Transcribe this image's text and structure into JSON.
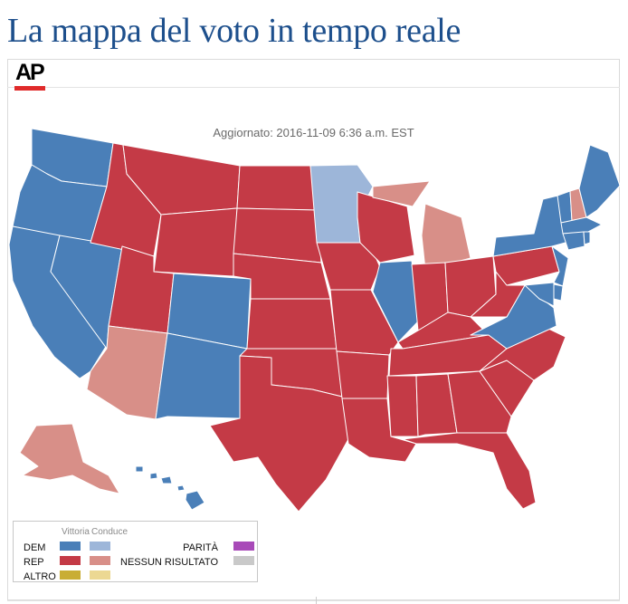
{
  "title": "La mappa del voto in tempo reale",
  "logo_text": "AP",
  "updated_text": "Aggiornato: 2016-11-09 6:36 a.m. EST",
  "colors": {
    "dem_won": "#4a7fb8",
    "dem_lead": "#9db6d9",
    "rep_won": "#c43a46",
    "rep_lead": "#d88f88",
    "other_won": "#c9ad34",
    "other_lead": "#ecd893",
    "tie": "#a84ab8",
    "no_result": "#c9c9c9",
    "title": "#1d4f8c",
    "ap_bar": "#e02a2a"
  },
  "legend": {
    "header_won": "Vittoria",
    "header_lead": "Conduce",
    "rows": [
      "DEM",
      "REP",
      "ALTRO"
    ],
    "tie_label": "PARITÀ",
    "no_result_label": "NESSUN RISULTATO"
  },
  "state_status": {
    "WA": "dem_won",
    "OR": "dem_won",
    "CA": "dem_won",
    "NV": "dem_won",
    "CO": "dem_won",
    "NM": "dem_won",
    "IL": "dem_won",
    "VA": "dem_won",
    "NY": "dem_won",
    "VT": "dem_won",
    "ME": "dem_won",
    "MA": "dem_won",
    "CT": "dem_won",
    "RI": "dem_won",
    "NJ": "dem_won",
    "DE": "dem_won",
    "MD": "dem_won",
    "HI": "dem_won",
    "MN": "dem_lead",
    "AZ": "rep_lead",
    "MI": "rep_lead",
    "NH": "rep_lead",
    "AK": "rep_lead",
    "ID": "rep_won",
    "MT": "rep_won",
    "WY": "rep_won",
    "UT": "rep_won",
    "ND": "rep_won",
    "SD": "rep_won",
    "NE": "rep_won",
    "KS": "rep_won",
    "OK": "rep_won",
    "TX": "rep_won",
    "IA": "rep_won",
    "MO": "rep_won",
    "AR": "rep_won",
    "LA": "rep_won",
    "WI": "rep_won",
    "IN": "rep_won",
    "OH": "rep_won",
    "KY": "rep_won",
    "TN": "rep_won",
    "MS": "rep_won",
    "AL": "rep_won",
    "GA": "rep_won",
    "FL": "rep_won",
    "SC": "rep_won",
    "NC": "rep_won",
    "WV": "rep_won",
    "PA": "rep_won"
  }
}
